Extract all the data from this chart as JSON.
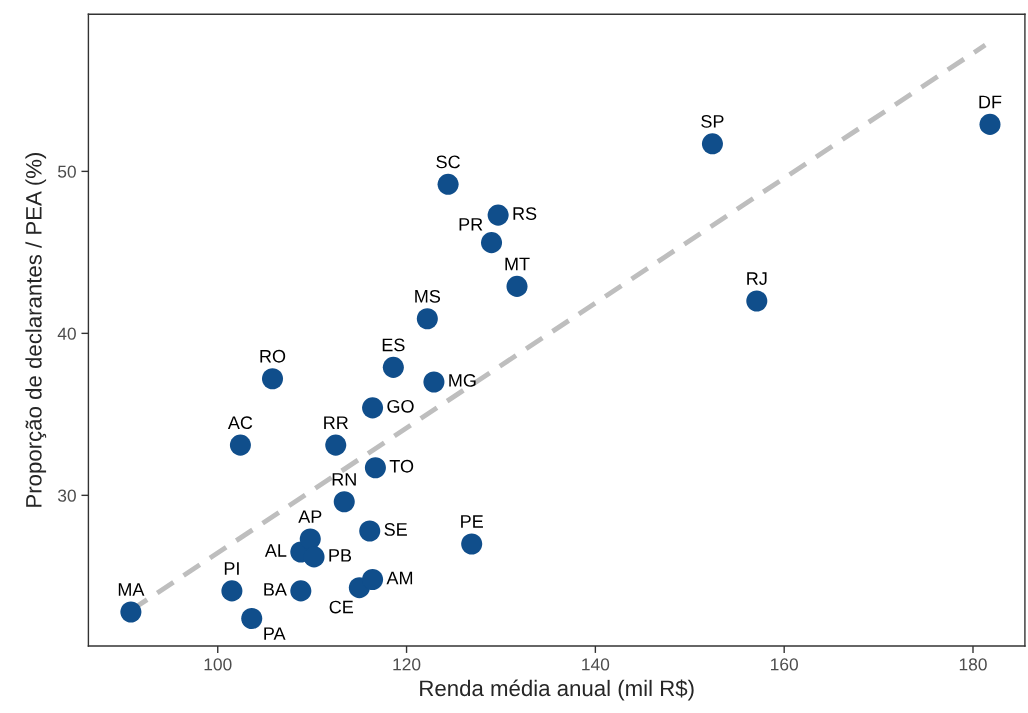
{
  "chart_data": {
    "type": "scatter",
    "xlabel": "Renda média anual (mil R$)",
    "ylabel": "Proporção de declarantes / PEA (%)",
    "xlim": [
      86.3,
      185.5
    ],
    "ylim": [
      20.7,
      59.7
    ],
    "xticks": [
      100,
      120,
      140,
      160,
      180
    ],
    "yticks": [
      30,
      40,
      50
    ],
    "grid": false,
    "legend": false,
    "series": [
      {
        "marker": "circle",
        "color": "#104e8b",
        "x": [
          90.8,
          101.5,
          103.6,
          108.8,
          108.8,
          109.8,
          110.2,
          102.4,
          105.8,
          112.5,
          113.4,
          116.7,
          116.4,
          118.6,
          122.9,
          122.2,
          116.1,
          115.0,
          116.4,
          126.9,
          124.4,
          129.0,
          129.7,
          131.7,
          152.4,
          157.1,
          181.8
        ],
        "values": [
          22.8,
          24.1,
          22.4,
          24.1,
          26.5,
          27.3,
          26.2,
          33.1,
          37.2,
          33.1,
          29.6,
          31.7,
          35.4,
          37.9,
          37.0,
          40.9,
          27.8,
          24.3,
          24.8,
          27.0,
          49.2,
          45.6,
          47.3,
          42.9,
          51.7,
          42.0,
          52.9
        ]
      },
      {
        "type": "line",
        "color": "#bebebe",
        "line_style": "dashed",
        "x": [
          90.8,
          181.3
        ],
        "values": [
          22.9,
          57.8
        ]
      }
    ],
    "annotations": [
      {
        "text": "MA",
        "x": 90.8,
        "y": 22.8
      },
      {
        "text": "PI",
        "x": 101.5,
        "y": 24.1
      },
      {
        "text": "PA",
        "x": 103.6,
        "y": 22.4
      },
      {
        "text": "BA",
        "x": 108.8,
        "y": 24.1
      },
      {
        "text": "AL",
        "x": 108.8,
        "y": 26.5
      },
      {
        "text": "AP",
        "x": 109.8,
        "y": 27.3
      },
      {
        "text": "PB",
        "x": 110.2,
        "y": 26.2
      },
      {
        "text": "AC",
        "x": 102.4,
        "y": 33.1
      },
      {
        "text": "RO",
        "x": 105.8,
        "y": 37.2
      },
      {
        "text": "RR",
        "x": 112.5,
        "y": 33.1
      },
      {
        "text": "RN",
        "x": 113.4,
        "y": 29.6
      },
      {
        "text": "TO",
        "x": 116.7,
        "y": 31.7
      },
      {
        "text": "GO",
        "x": 116.4,
        "y": 35.4
      },
      {
        "text": "ES",
        "x": 118.6,
        "y": 37.9
      },
      {
        "text": "MG",
        "x": 122.9,
        "y": 37.0
      },
      {
        "text": "MS",
        "x": 122.2,
        "y": 40.9
      },
      {
        "text": "SE",
        "x": 116.1,
        "y": 27.8
      },
      {
        "text": "CE",
        "x": 115.0,
        "y": 24.3
      },
      {
        "text": "AM",
        "x": 116.4,
        "y": 24.8
      },
      {
        "text": "PE",
        "x": 126.9,
        "y": 27.0
      },
      {
        "text": "SC",
        "x": 124.4,
        "y": 49.2
      },
      {
        "text": "PR",
        "x": 129.0,
        "y": 45.6
      },
      {
        "text": "RS",
        "x": 129.7,
        "y": 47.3
      },
      {
        "text": "MT",
        "x": 131.7,
        "y": 42.9
      },
      {
        "text": "SP",
        "x": 152.4,
        "y": 51.7
      },
      {
        "text": "RJ",
        "x": 157.1,
        "y": 42.0
      },
      {
        "text": "DF",
        "x": 181.8,
        "y": 52.9
      }
    ]
  }
}
